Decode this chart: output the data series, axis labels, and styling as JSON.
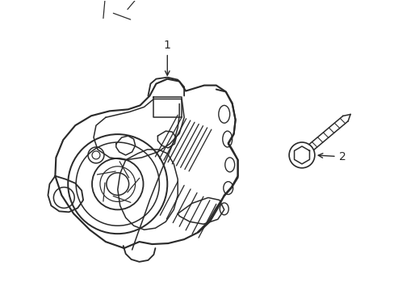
{
  "bg_color": "#ffffff",
  "line_color": "#2a2a2a",
  "line_width": 1.1,
  "fig_width": 4.89,
  "fig_height": 3.6,
  "dpi": 100,
  "label1": "1",
  "label2": "2"
}
